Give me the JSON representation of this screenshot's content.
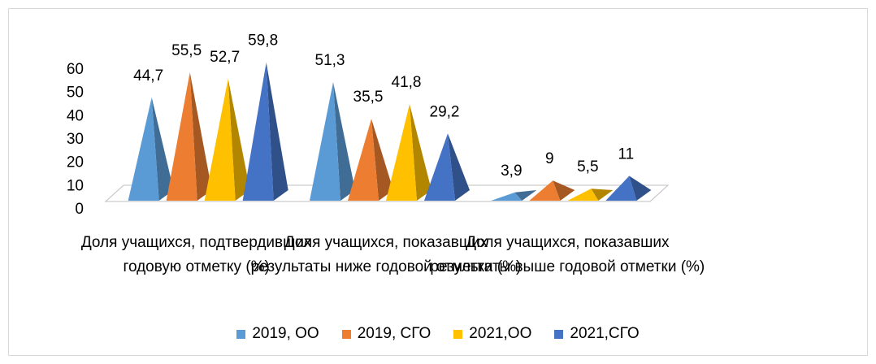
{
  "chart_data": {
    "type": "bar",
    "categories": [
      "Доля учащихся, подтвердивших годовую отметку (%)",
      "Доля учащихся, показавших результаты ниже годовой отметки (%)",
      "Доля учащихся, показавших результаты выше годовой отметки (%)"
    ],
    "series": [
      {
        "name": "2019, ОО",
        "color": "#5B9BD5",
        "values": [
          44.7,
          51.3,
          3.9
        ],
        "value_labels": [
          "44,7",
          "51,3",
          "3,9"
        ]
      },
      {
        "name": "2019, СГО",
        "color": "#ED7D31",
        "values": [
          55.5,
          35.5,
          9
        ],
        "value_labels": [
          "55,5",
          "35,5",
          "9"
        ]
      },
      {
        "name": "2021,ОО",
        "color": "#FFC000",
        "values": [
          52.7,
          41.8,
          5.5
        ],
        "value_labels": [
          "52,7",
          "41,8",
          "5,5"
        ]
      },
      {
        "name": "2021,СГО",
        "color": "#4472C4",
        "values": [
          59.8,
          29.2,
          11
        ],
        "value_labels": [
          "59,8",
          "29,2",
          "11"
        ]
      }
    ],
    "ylim": [
      0,
      60
    ],
    "yticks": [
      0,
      10,
      20,
      30,
      40,
      50,
      60
    ]
  }
}
